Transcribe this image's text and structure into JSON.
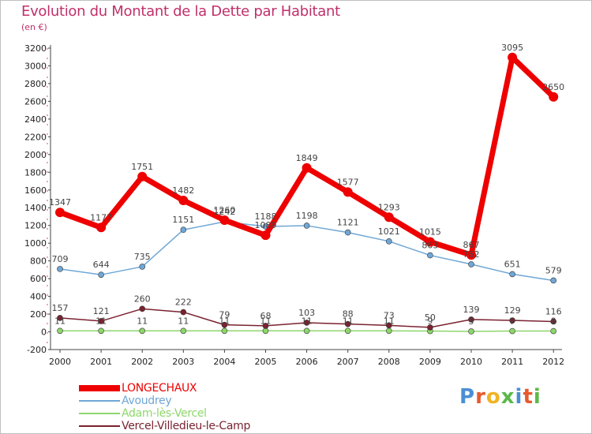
{
  "title": "Evolution du Montant de la Dette par Habitant",
  "unit_label": "(en €)",
  "logo": {
    "text": "Proxiti",
    "letters": [
      {
        "ch": "P",
        "color": "#4a8fd4"
      },
      {
        "ch": "r",
        "color": "#e65a2d"
      },
      {
        "ch": "o",
        "color": "#f0b323"
      },
      {
        "ch": "x",
        "color": "#5cb84a"
      },
      {
        "ch": "i",
        "color": "#4a8fd4"
      },
      {
        "ch": "t",
        "color": "#e65a2d"
      },
      {
        "ch": "i",
        "color": "#5cb84a"
      }
    ]
  },
  "chart_data": {
    "type": "line",
    "title": "Evolution du Montant de la Dette par Habitant",
    "ylabel": "(en €)",
    "xlabel": "",
    "x": [
      "2000",
      "2001",
      "2002",
      "2003",
      "2004",
      "2005",
      "2006",
      "2007",
      "2008",
      "2009",
      "2010",
      "2011",
      "2012"
    ],
    "ylim": [
      -200,
      3200
    ],
    "yticks": [
      -200,
      0,
      200,
      400,
      600,
      800,
      1000,
      1200,
      1400,
      1600,
      1800,
      2000,
      2200,
      2400,
      2600,
      2800,
      3000,
      3200
    ],
    "grid": false,
    "legend_position": "bottom-left",
    "series": [
      {
        "name": "LONGECHAUX",
        "color": "#ee0000",
        "values": [
          1347,
          1177,
          1751,
          1482,
          1260,
          1089,
          1849,
          1577,
          1293,
          1015,
          867,
          3095,
          2650
        ]
      },
      {
        "name": "Avoudrey",
        "color": "#6fa7d6",
        "values": [
          709,
          644,
          735,
          1151,
          1242,
          1188,
          1198,
          1121,
          1021,
          863,
          762,
          651,
          579
        ]
      },
      {
        "name": "Adam-lès-Vercel",
        "color": "#8ed66b",
        "values": [
          11,
          11,
          11,
          11,
          11,
          11,
          11,
          11,
          11,
          9,
          5,
          9,
          9
        ]
      },
      {
        "name": "Vercel-Villedieu-le-Camp",
        "color": "#7a2230",
        "values": [
          157,
          121,
          260,
          222,
          79,
          68,
          103,
          88,
          73,
          50,
          139,
          129,
          116
        ]
      }
    ]
  }
}
